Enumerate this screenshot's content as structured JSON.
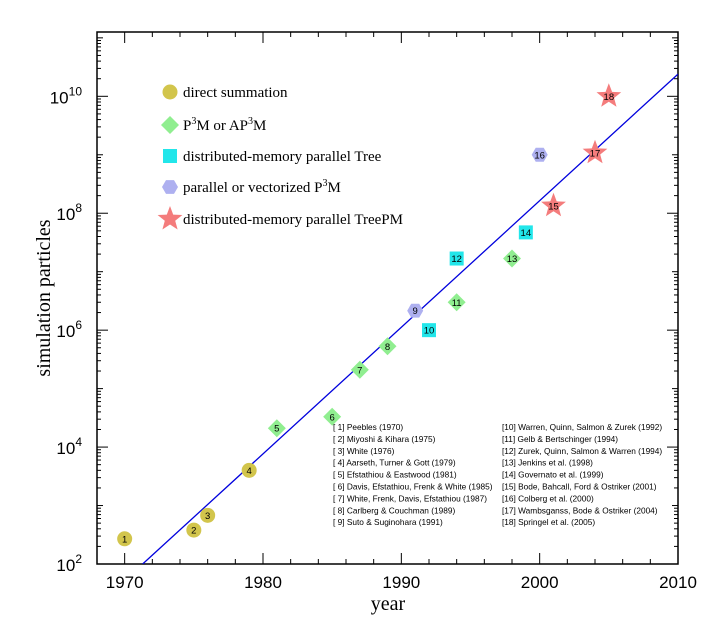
{
  "chart_data": {
    "type": "scatter",
    "xlabel": "year",
    "ylabel": "simulation particles",
    "xlim": [
      1968,
      2010
    ],
    "ylim_log10": [
      2,
      11.1
    ],
    "y_scale": "log",
    "x_ticks": [
      "1970",
      "1980",
      "1990",
      "2000",
      "2010"
    ],
    "y_ticks": [
      {
        "base": "10",
        "exp": "2"
      },
      {
        "base": "10",
        "exp": "4"
      },
      {
        "base": "10",
        "exp": "6"
      },
      {
        "base": "10",
        "exp": "8"
      },
      {
        "base": "10",
        "exp": "10"
      }
    ],
    "grid": false,
    "legend": [
      {
        "label": "direct summation",
        "marker": "circle",
        "color": "#d2c54c"
      },
      {
        "label_parts": [
          "P",
          "3",
          "M or AP",
          "3",
          "M"
        ],
        "marker": "diamond",
        "color": "#90ee90"
      },
      {
        "label": "distributed-memory parallel Tree",
        "marker": "square",
        "color": "#22e6ea"
      },
      {
        "label_parts": [
          "parallel or vectorized P",
          "3",
          "M"
        ],
        "marker": "hexagon",
        "color": "#aeb0f0"
      },
      {
        "label": "distributed-memory parallel TreePM",
        "marker": "star",
        "color": "#f47c7c"
      }
    ],
    "points": [
      {
        "id": "1",
        "year": 1970,
        "particles": 270,
        "marker": "circle"
      },
      {
        "id": "2",
        "year": 1975,
        "particles": 380,
        "marker": "circle"
      },
      {
        "id": "3",
        "year": 1976,
        "particles": 680,
        "marker": "circle"
      },
      {
        "id": "4",
        "year": 1979,
        "particles": 4000,
        "marker": "circle"
      },
      {
        "id": "5",
        "year": 1981,
        "particles": 21000,
        "marker": "diamond"
      },
      {
        "id": "6",
        "year": 1985,
        "particles": 33000,
        "marker": "diamond"
      },
      {
        "id": "7",
        "year": 1987,
        "particles": 210000,
        "marker": "diamond"
      },
      {
        "id": "8",
        "year": 1989,
        "particles": 530000,
        "marker": "diamond"
      },
      {
        "id": "9",
        "year": 1991,
        "particles": 2150000,
        "marker": "hexagon"
      },
      {
        "id": "10",
        "year": 1992,
        "particles": 1000000,
        "marker": "square"
      },
      {
        "id": "11",
        "year": 1994,
        "particles": 3000000,
        "marker": "diamond"
      },
      {
        "id": "12",
        "year": 1994,
        "particles": 16800000,
        "marker": "square"
      },
      {
        "id": "13",
        "year": 1998,
        "particles": 16800000,
        "marker": "diamond"
      },
      {
        "id": "14",
        "year": 1999,
        "particles": 47000000,
        "marker": "square"
      },
      {
        "id": "15",
        "year": 2001,
        "particles": 134000000,
        "marker": "star"
      },
      {
        "id": "16",
        "year": 2000,
        "particles": 1000000000,
        "marker": "hexagon"
      },
      {
        "id": "17",
        "year": 2004,
        "particles": 1080000000,
        "marker": "star"
      },
      {
        "id": "18",
        "year": 2005,
        "particles": 10000000000,
        "marker": "star"
      }
    ],
    "fit_line": {
      "color": "#0000dd",
      "points": [
        [
          1971.3,
          100
        ],
        [
          2010,
          24000000000
        ]
      ]
    },
    "references_left": [
      "[ 1] Peebles (1970)",
      "[ 2] Miyoshi & Kihara (1975)",
      "[ 3] White (1976)",
      "[ 4] Aarseth, Turner & Gott (1979)",
      "[ 5] Efstathiou & Eastwood (1981)",
      "[ 6] Davis, Efstathiou, Frenk & White (1985)",
      "[ 7] White, Frenk, Davis, Efstathiou (1987)",
      "[ 8] Carlberg & Couchman (1989)",
      "[ 9] Suto & Suginohara (1991)"
    ],
    "references_right": [
      "[10] Warren, Quinn, Salmon & Zurek (1992)",
      "[11] Gelb & Bertschinger (1994)",
      "[12] Zurek, Quinn, Salmon & Warren (1994)",
      "[13] Jenkins et al. (1998)",
      "[14] Governato et al. (1999)",
      "[15] Bode, Bahcall, Ford & Ostriker (2001)",
      "[16] Colberg et al. (2000)",
      "[17] Wambsganss, Bode & Ostriker (2004)",
      "[18] Springel et al. (2005)"
    ]
  }
}
